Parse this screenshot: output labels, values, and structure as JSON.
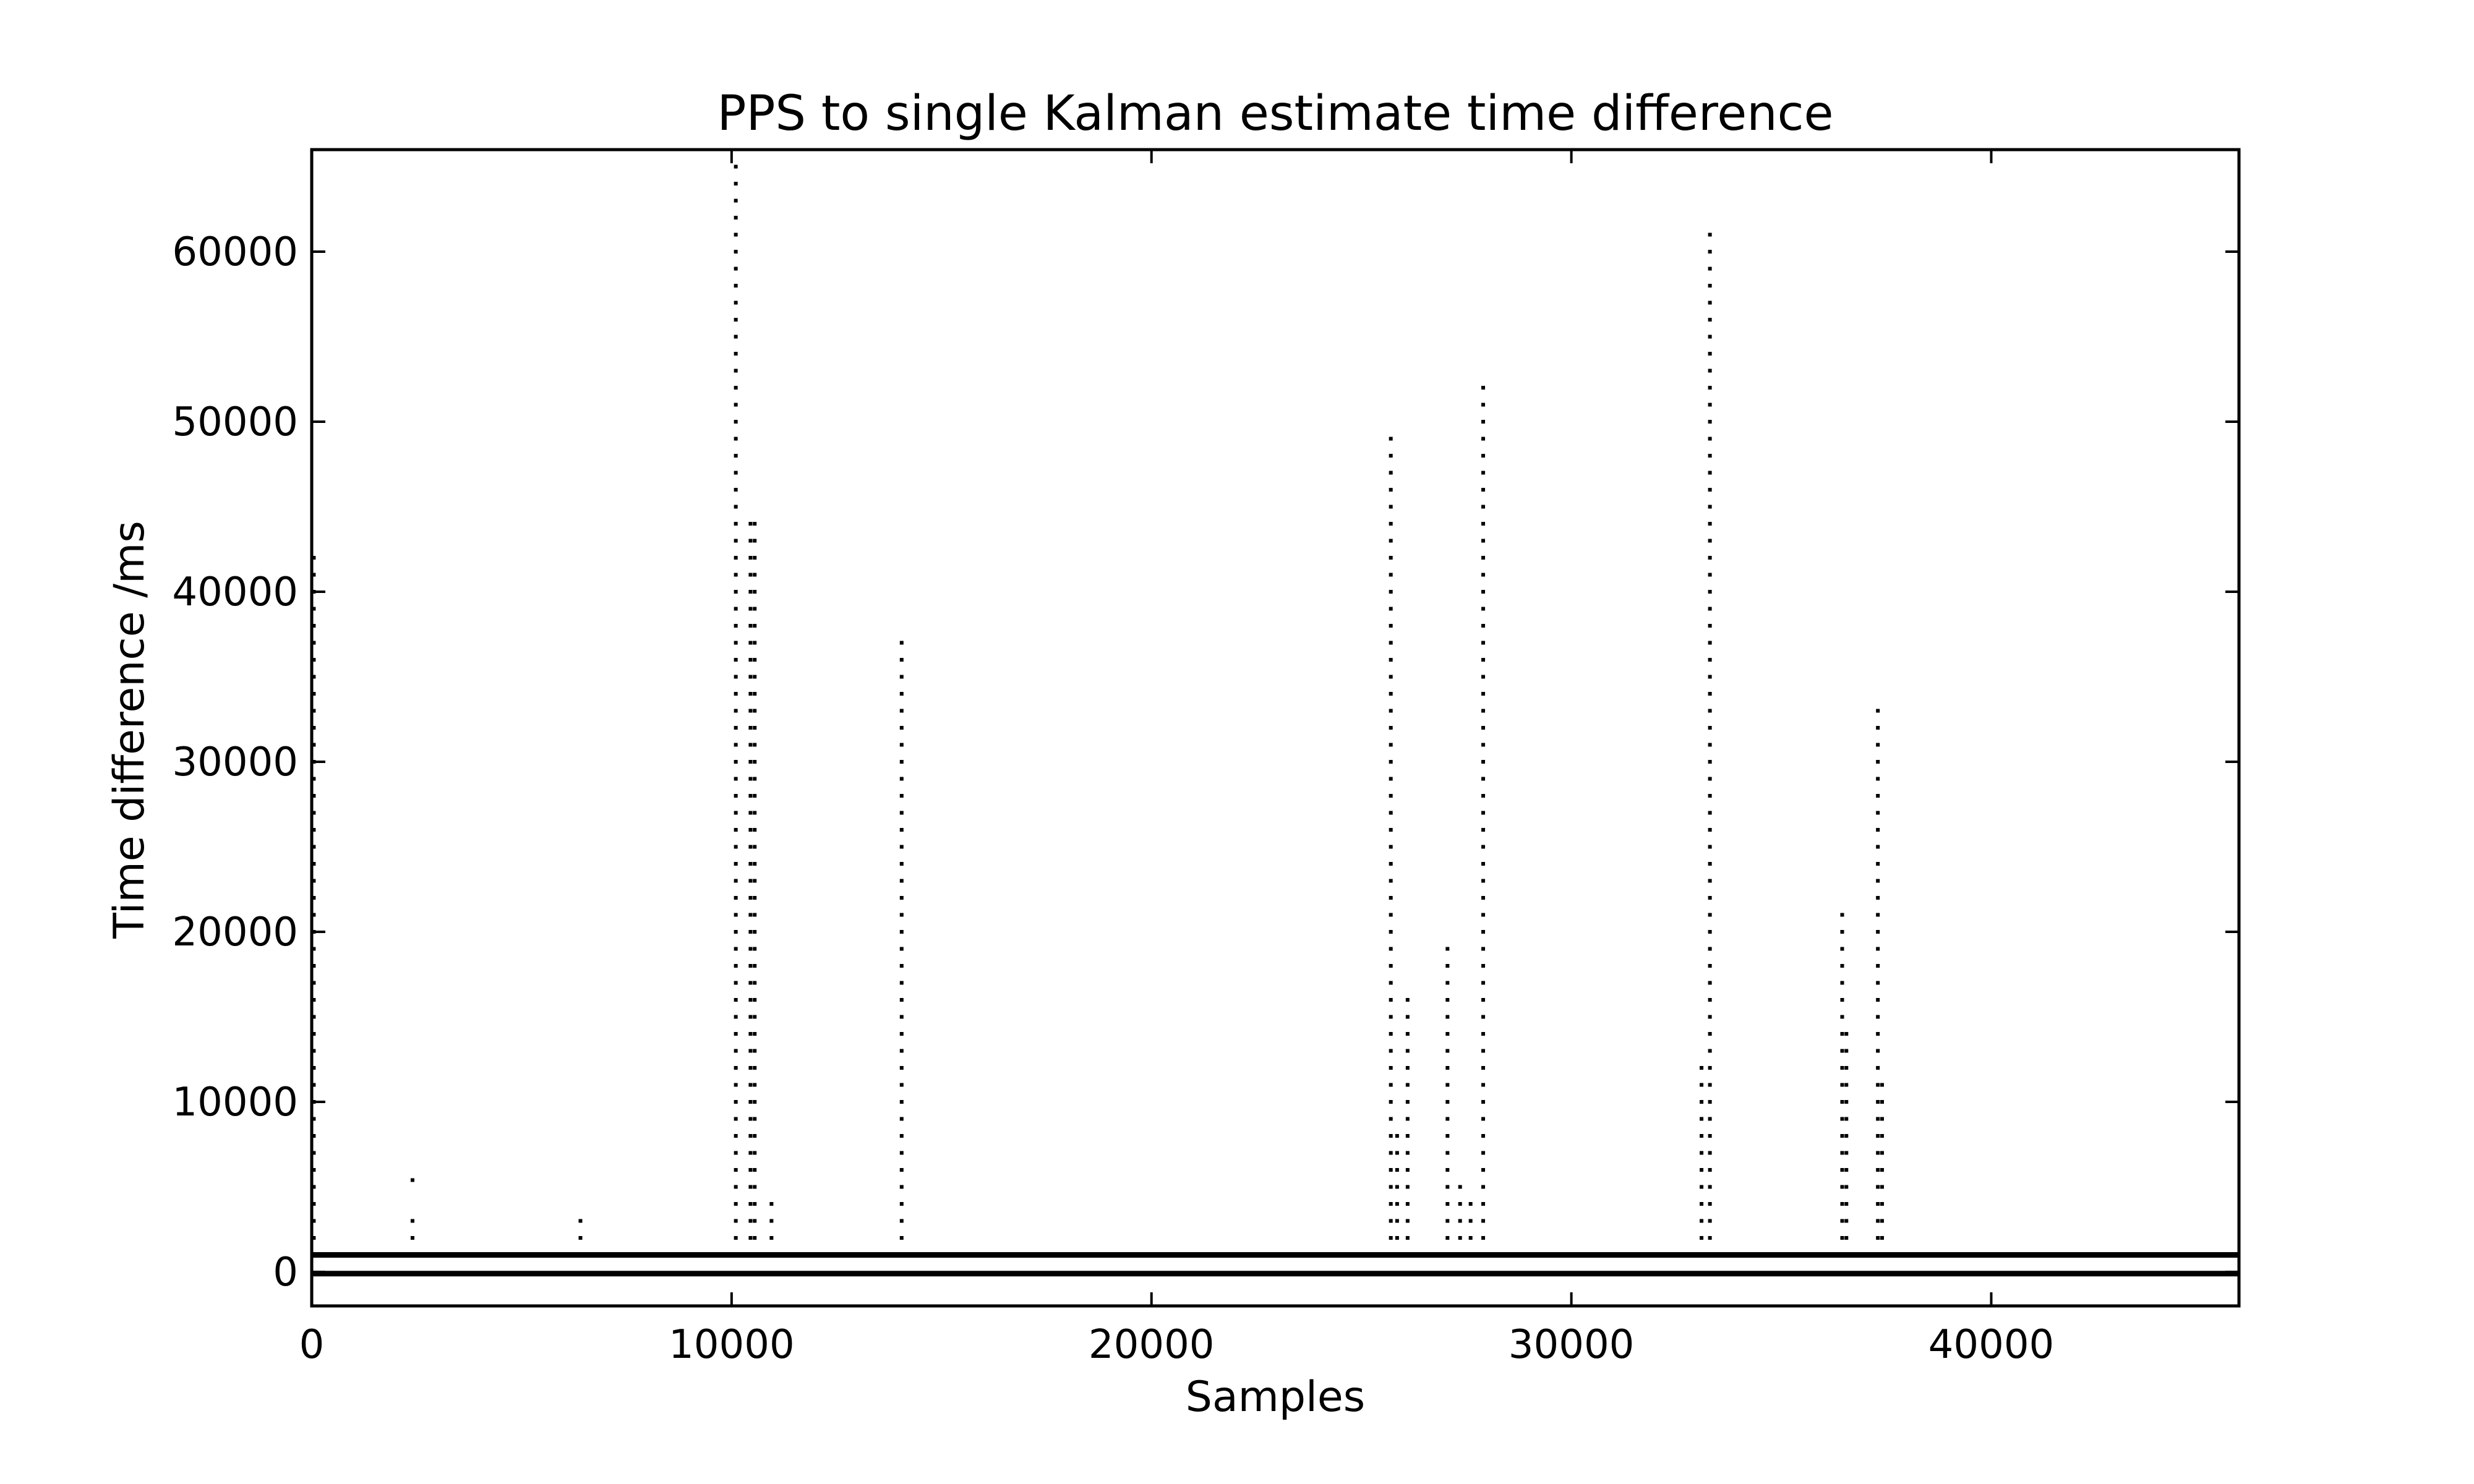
{
  "chart_data": {
    "type": "scatter",
    "title": "PPS to single Kalman estimate time difference",
    "xlabel": "Samples",
    "ylabel": "Time difference /ms",
    "xlim": [
      0,
      45900
    ],
    "ylim": [
      -2000,
      66000
    ],
    "xticks": [
      0,
      10000,
      20000,
      30000,
      40000
    ],
    "yticks": [
      0,
      10000,
      20000,
      30000,
      40000,
      50000,
      60000
    ],
    "xtick_labels": [
      "0",
      "10000",
      "20000",
      "30000",
      "40000"
    ],
    "ytick_labels": [
      "0",
      "10000",
      "20000",
      "30000",
      "40000",
      "50000",
      "60000"
    ],
    "grid": false,
    "marker_color": "#000000",
    "baseline_bands": [
      {
        "y": 1000,
        "x_range": [
          0,
          45900
        ]
      },
      {
        "y": -100,
        "x_range": [
          0,
          45900
        ]
      }
    ],
    "spike_columns": [
      {
        "x": 50,
        "y_min": 1000,
        "y_max": 42000
      },
      {
        "x": 2400,
        "y_min": 1000,
        "y_max": 3900
      },
      {
        "x": 2400,
        "y_min": 5400,
        "y_max": 5400
      },
      {
        "x": 6400,
        "y_min": 2000,
        "y_max": 3000
      },
      {
        "x": 10100,
        "y_min": 2000,
        "y_max": 65000
      },
      {
        "x": 10450,
        "y_min": 2000,
        "y_max": 44000
      },
      {
        "x": 10550,
        "y_min": 2000,
        "y_max": 44000
      },
      {
        "x": 10950,
        "y_min": 2000,
        "y_max": 4000
      },
      {
        "x": 14050,
        "y_min": 2000,
        "y_max": 37000
      },
      {
        "x": 25700,
        "y_min": 2000,
        "y_max": 49000
      },
      {
        "x": 25850,
        "y_min": 2000,
        "y_max": 8000
      },
      {
        "x": 26100,
        "y_min": 2000,
        "y_max": 16000
      },
      {
        "x": 27050,
        "y_min": 2000,
        "y_max": 19000
      },
      {
        "x": 27350,
        "y_min": 2000,
        "y_max": 5000
      },
      {
        "x": 27600,
        "y_min": 2000,
        "y_max": 4000
      },
      {
        "x": 27900,
        "y_min": 2000,
        "y_max": 52000
      },
      {
        "x": 33100,
        "y_min": 1000,
        "y_max": 12800
      },
      {
        "x": 33300,
        "y_min": 1000,
        "y_max": 61000
      },
      {
        "x": 36450,
        "y_min": 2000,
        "y_max": 21000
      },
      {
        "x": 36550,
        "y_min": 2000,
        "y_max": 14000
      },
      {
        "x": 37300,
        "y_min": 2000,
        "y_max": 33000
      },
      {
        "x": 37400,
        "y_min": 2000,
        "y_max": 11000
      }
    ]
  }
}
